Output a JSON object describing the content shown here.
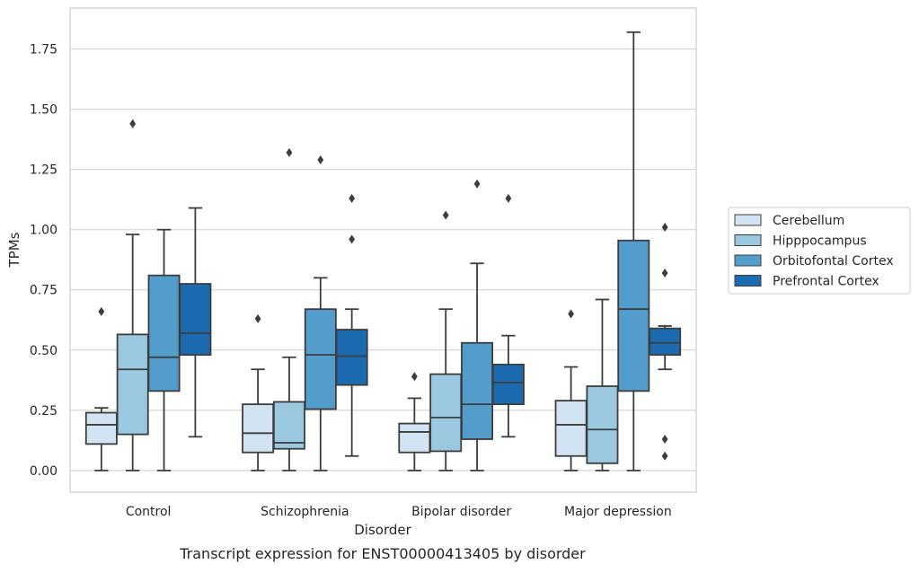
{
  "caption": "Transcript expression for ENST00000413405 by disorder",
  "chart_data": {
    "type": "box",
    "xlabel": "Disorder",
    "ylabel": "TPMs",
    "ylim": [
      -0.09,
      1.92
    ],
    "yticks": [
      "0.00",
      "0.25",
      "0.50",
      "0.75",
      "1.00",
      "1.25",
      "1.50",
      "1.75"
    ],
    "categories": [
      "Control",
      "Schizophrenia",
      "Bipolar disorder",
      "Major depression"
    ],
    "grid": "horizontal",
    "legend_position": "right",
    "series": [
      {
        "name": "Cerebellum",
        "color": "#d2e3f3",
        "boxes": [
          {
            "whislo": 0.0,
            "q1": 0.11,
            "med": 0.19,
            "q3": 0.24,
            "whishi": 0.26,
            "fliers": [
              0.66
            ]
          },
          {
            "whislo": 0.0,
            "q1": 0.075,
            "med": 0.155,
            "q3": 0.275,
            "whishi": 0.42,
            "fliers": [
              0.63
            ]
          },
          {
            "whislo": 0.0,
            "q1": 0.075,
            "med": 0.16,
            "q3": 0.195,
            "whishi": 0.3,
            "fliers": [
              0.39
            ]
          },
          {
            "whislo": 0.0,
            "q1": 0.06,
            "med": 0.19,
            "q3": 0.29,
            "whishi": 0.43,
            "fliers": [
              0.65
            ]
          }
        ]
      },
      {
        "name": "Hipppocampus",
        "color": "#9ac8e0",
        "boxes": [
          {
            "whislo": 0.0,
            "q1": 0.15,
            "med": 0.42,
            "q3": 0.565,
            "whishi": 0.98,
            "fliers": [
              1.44
            ]
          },
          {
            "whislo": 0.0,
            "q1": 0.09,
            "med": 0.115,
            "q3": 0.285,
            "whishi": 0.47,
            "fliers": [
              1.32
            ]
          },
          {
            "whislo": 0.0,
            "q1": 0.08,
            "med": 0.22,
            "q3": 0.4,
            "whishi": 0.67,
            "fliers": [
              1.06
            ]
          },
          {
            "whislo": 0.0,
            "q1": 0.03,
            "med": 0.17,
            "q3": 0.35,
            "whishi": 0.71,
            "fliers": []
          }
        ]
      },
      {
        "name": "Orbitofontal Cortex",
        "color": "#529dcc",
        "boxes": [
          {
            "whislo": 0.0,
            "q1": 0.33,
            "med": 0.47,
            "q3": 0.81,
            "whishi": 1.0,
            "fliers": []
          },
          {
            "whislo": 0.0,
            "q1": 0.255,
            "med": 0.48,
            "q3": 0.67,
            "whishi": 0.8,
            "fliers": [
              1.29
            ]
          },
          {
            "whislo": 0.0,
            "q1": 0.13,
            "med": 0.275,
            "q3": 0.53,
            "whishi": 0.86,
            "fliers": [
              1.19
            ]
          },
          {
            "whislo": 0.0,
            "q1": 0.33,
            "med": 0.67,
            "q3": 0.955,
            "whishi": 1.82,
            "fliers": []
          }
        ]
      },
      {
        "name": "Prefrontal Cortex",
        "color": "#1c6aaf",
        "boxes": [
          {
            "whislo": 0.14,
            "q1": 0.48,
            "med": 0.57,
            "q3": 0.775,
            "whishi": 1.09,
            "fliers": []
          },
          {
            "whislo": 0.06,
            "q1": 0.355,
            "med": 0.475,
            "q3": 0.585,
            "whishi": 0.67,
            "fliers": [
              1.13,
              0.96
            ]
          },
          {
            "whislo": 0.14,
            "q1": 0.275,
            "med": 0.365,
            "q3": 0.44,
            "whishi": 0.56,
            "fliers": [
              1.13
            ]
          },
          {
            "whislo": 0.42,
            "q1": 0.48,
            "med": 0.53,
            "q3": 0.59,
            "whishi": 0.6,
            "fliers": [
              1.01,
              0.82,
              0.13,
              0.06
            ]
          }
        ]
      }
    ]
  }
}
